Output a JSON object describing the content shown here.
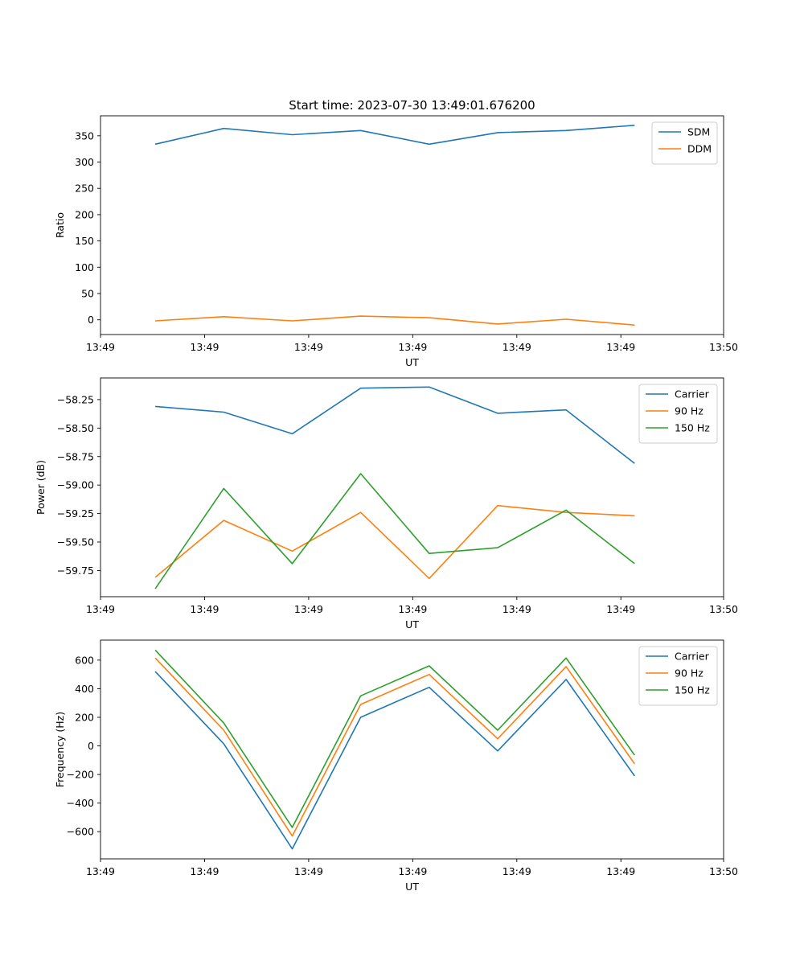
{
  "chart_data": [
    {
      "type": "line",
      "title": "Start time: 2023-07-30 13:49:01.676200",
      "xlabel": "UT",
      "ylabel": "Ratio",
      "x": [
        1,
        2,
        3,
        4,
        5,
        6,
        7,
        8
      ],
      "xlim": [
        0.2,
        9.3
      ],
      "xticks": [
        0.2,
        1.72,
        3.24,
        4.76,
        6.28,
        7.8,
        9.3
      ],
      "xtick_labels": [
        "13:49",
        "13:49",
        "13:49",
        "13:49",
        "13:49",
        "13:49",
        "13:50"
      ],
      "ylim": [
        -28,
        388
      ],
      "yticks": [
        0,
        50,
        100,
        150,
        200,
        250,
        300,
        350
      ],
      "ytick_labels": [
        "0",
        "50",
        "100",
        "150",
        "200",
        "250",
        "300",
        "350"
      ],
      "grid": false,
      "legend": "top-right",
      "series": [
        {
          "name": "SDM",
          "color": "#1f77b4",
          "values": [
            334,
            364,
            352,
            360,
            334,
            356,
            360,
            370
          ]
        },
        {
          "name": "DDM",
          "color": "#ff7f0e",
          "values": [
            -2,
            6,
            -2,
            7,
            4,
            -8,
            1,
            -10
          ]
        }
      ]
    },
    {
      "type": "line",
      "title": "",
      "xlabel": "UT",
      "ylabel": "Power (dB)",
      "x": [
        1,
        2,
        3,
        4,
        5,
        6,
        7,
        8
      ],
      "xlim": [
        0.2,
        9.3
      ],
      "xticks": [
        0.2,
        1.72,
        3.24,
        4.76,
        6.28,
        7.8,
        9.3
      ],
      "xtick_labels": [
        "13:49",
        "13:49",
        "13:49",
        "13:49",
        "13:49",
        "13:49",
        "13:50"
      ],
      "ylim": [
        -59.98,
        -58.06
      ],
      "yticks": [
        -59.75,
        -59.5,
        -59.25,
        -59.0,
        -58.75,
        -58.5,
        -58.25
      ],
      "ytick_labels": [
        "−59.75",
        "−59.50",
        "−59.25",
        "−59.00",
        "−58.75",
        "−58.50",
        "−58.25"
      ],
      "grid": false,
      "legend": "top-right",
      "series": [
        {
          "name": "Carrier",
          "color": "#1f77b4",
          "values": [
            -58.31,
            -58.36,
            -58.55,
            -58.15,
            -58.14,
            -58.37,
            -58.34,
            -58.81
          ]
        },
        {
          "name": "90 Hz",
          "color": "#ff7f0e",
          "values": [
            -59.81,
            -59.31,
            -59.58,
            -59.24,
            -59.82,
            -59.18,
            -59.24,
            -59.27
          ]
        },
        {
          "name": "150 Hz",
          "color": "#2ca02c",
          "values": [
            -59.91,
            -59.03,
            -59.69,
            -58.9,
            -59.6,
            -59.55,
            -59.22,
            -59.69
          ]
        }
      ]
    },
    {
      "type": "line",
      "title": "",
      "xlabel": "UT",
      "ylabel": "Frequency (Hz)",
      "x": [
        1,
        2,
        3,
        4,
        5,
        6,
        7,
        8
      ],
      "xlim": [
        0.2,
        9.3
      ],
      "xticks": [
        0.2,
        1.72,
        3.24,
        4.76,
        6.28,
        7.8,
        9.3
      ],
      "xtick_labels": [
        "13:49",
        "13:49",
        "13:49",
        "13:49",
        "13:49",
        "13:49",
        "13:50"
      ],
      "ylim": [
        -790,
        740
      ],
      "yticks": [
        -600,
        -400,
        -200,
        0,
        200,
        400,
        600
      ],
      "ytick_labels": [
        "−600",
        "−400",
        "−200",
        "0",
        "200",
        "400",
        "600"
      ],
      "grid": false,
      "legend": "top-right",
      "series": [
        {
          "name": "Carrier",
          "color": "#1f77b4",
          "values": [
            520,
            15,
            -720,
            200,
            410,
            -35,
            465,
            -210
          ]
        },
        {
          "name": "90 Hz",
          "color": "#ff7f0e",
          "values": [
            615,
            110,
            -630,
            290,
            500,
            50,
            555,
            -125
          ]
        },
        {
          "name": "150 Hz",
          "color": "#2ca02c",
          "values": [
            670,
            160,
            -570,
            350,
            560,
            110,
            615,
            -65
          ]
        }
      ]
    }
  ]
}
